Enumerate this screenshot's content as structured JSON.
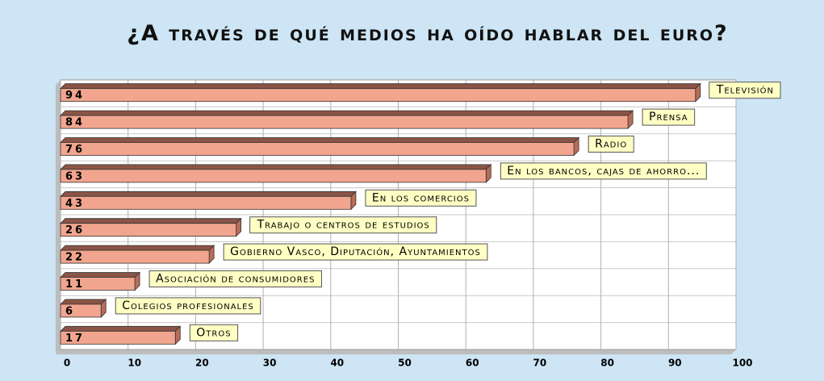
{
  "chart_data": {
    "type": "bar",
    "orientation": "horizontal",
    "title": "¿A través de qué medios ha oído hablar del euro?",
    "categories": [
      "Televisión",
      "Prensa",
      "Radio",
      "En los bancos, cajas de ahorro...",
      "En los comercios",
      "Trabajo o centros de estudios",
      "Gobierno Vasco, Diputación, Ayuntamientos",
      "Asociación de consumidores",
      "Colegios profesionales",
      "Otros"
    ],
    "values": [
      94,
      84,
      76,
      63,
      43,
      26,
      22,
      11,
      6,
      17
    ],
    "color": "#f2a58e",
    "xlim": [
      0,
      100
    ],
    "xticks": [
      0,
      10,
      20,
      30,
      40,
      50,
      60,
      70,
      80,
      90,
      100
    ],
    "grid": true
  }
}
